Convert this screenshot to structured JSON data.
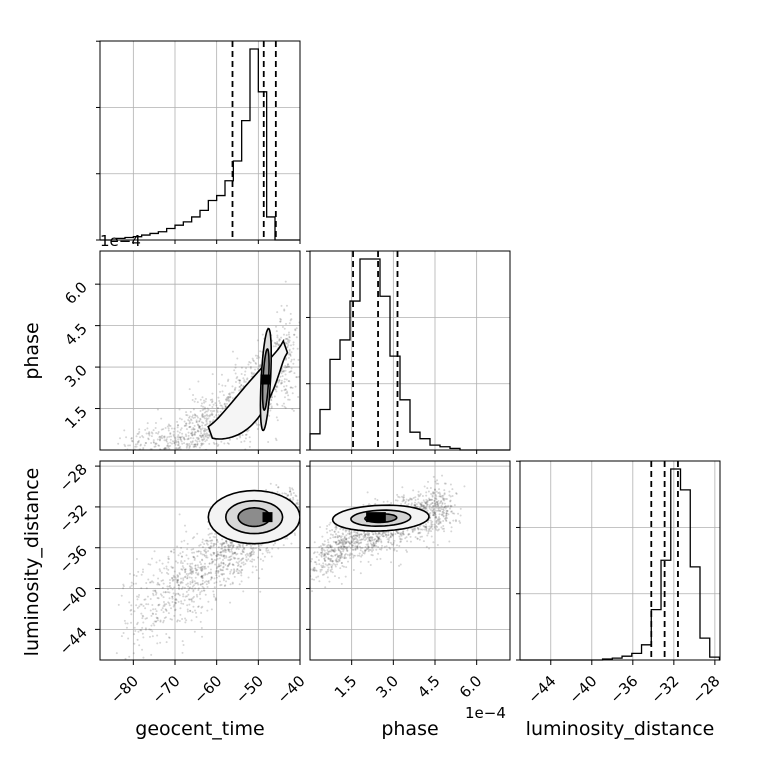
{
  "chart_data": {
    "type": "corner",
    "parameters": [
      "geocent_time",
      "phase",
      "luminosity_distance"
    ],
    "offset_texts": {
      "geocent_time_axis": "1e−4",
      "phase_axis": "1e−4"
    },
    "ranges": {
      "geocent_time": [
        -88,
        -40
      ],
      "phase": [
        0.0,
        7.2
      ],
      "luminosity_distance": [
        -47,
        -27.5
      ]
    },
    "ticks": {
      "geocent_time": [
        -80,
        -70,
        -60,
        -50,
        -40
      ],
      "phase": [
        1.5,
        3.0,
        4.5,
        6.0
      ],
      "luminosity_distance": [
        -44,
        -40,
        -36,
        -32,
        -28
      ]
    },
    "tick_labels": {
      "geocent_time": [
        "−80",
        "−70",
        "−60",
        "−50",
        "−40"
      ],
      "phase": [
        "1.5",
        "3.0",
        "4.5",
        "6.0"
      ],
      "luminosity_distance": [
        "−44",
        "−40",
        "−36",
        "−32",
        "−28"
      ]
    },
    "quantiles": {
      "geocent_time": [
        -56.2,
        -48.7,
        -45.8
      ],
      "phase": [
        1.55,
        2.45,
        3.15
      ],
      "luminosity_distance": [
        -34.2,
        -32.9,
        -31.6
      ]
    },
    "histograms": {
      "geocent_time": {
        "bin_start": -88,
        "bin_width": 2,
        "counts": [
          0,
          0,
          2,
          3,
          4,
          6,
          8,
          10,
          14,
          18,
          22,
          28,
          36,
          48,
          54,
          72,
          96,
          145,
          232,
          180,
          28,
          0,
          0,
          0
        ]
      },
      "phase": {
        "bin_start": 0.0,
        "bin_width": 0.36,
        "counts": [
          10,
          25,
          56,
          68,
          92,
          118,
          118,
          95,
          58,
          31,
          11,
          7,
          3,
          2,
          1,
          0,
          0,
          0,
          0,
          0
        ]
      },
      "luminosity_distance": {
        "bin_start": -47.5,
        "bin_width": 0.95,
        "counts": [
          0,
          0,
          0,
          0,
          0,
          0,
          0,
          0,
          0,
          1,
          2,
          4,
          7,
          16,
          53,
          105,
          201,
          179,
          98,
          23,
          3,
          0
        ]
      }
    },
    "scatter_centers": {
      "geocent_time_phase": {
        "x": -48,
        "y": 2.5
      },
      "geocent_time_luminosity_distance": {
        "x": -48,
        "y": -33
      },
      "phase_luminosity_distance": {
        "x": 2.4,
        "y": -33
      }
    },
    "grid": true
  }
}
